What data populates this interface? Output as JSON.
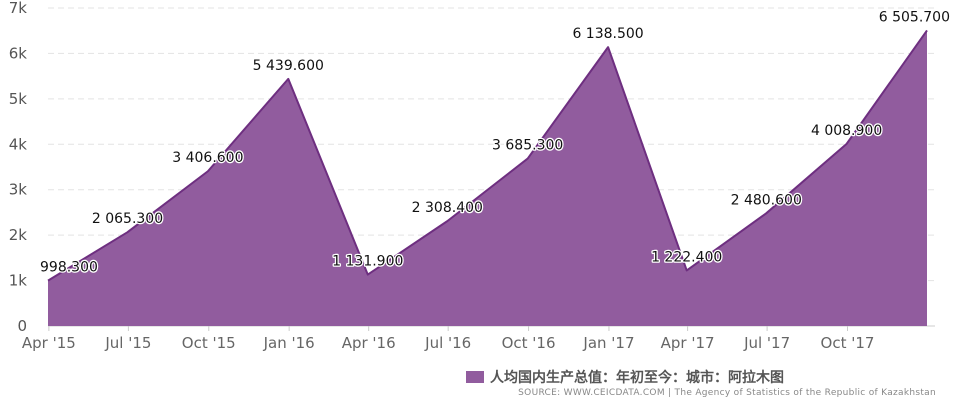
{
  "chart_data": {
    "type": "area",
    "x": [
      "2015-03",
      "2015-06",
      "2015-09",
      "2015-12",
      "2016-03",
      "2016-06",
      "2016-09",
      "2016-12",
      "2017-03",
      "2017-06",
      "2017-09",
      "2017-12"
    ],
    "values": [
      998.3,
      2065.3,
      3406.6,
      5439.6,
      1131.9,
      2308.4,
      3685.3,
      6138.5,
      1222.4,
      2480.6,
      4008.9,
      6505.7
    ],
    "data_labels": [
      "998.300",
      "2 065.300",
      "3 406.600",
      "5 439.600",
      "1 131.900",
      "2 308.400",
      "3 685.300",
      "6 138.500",
      "1 222.400",
      "2 480.600",
      "4 008.900",
      "6 505.700"
    ],
    "x_tick_labels": [
      "Apr '15",
      "Jul '15",
      "Oct '15",
      "Jan '16",
      "Apr '16",
      "Jul '16",
      "Oct '16",
      "Jan '17",
      "Apr '17",
      "Jul '17",
      "Oct '17"
    ],
    "y_tick_labels": [
      "0",
      "1k",
      "2k",
      "3k",
      "4k",
      "5k",
      "6k",
      "7k"
    ],
    "ylim": [
      0,
      7000
    ],
    "grid": "horizontal dashed",
    "legend": {
      "position": "bottom-right",
      "label": "人均国内生产总值：年初至今：城市：阿拉木图"
    },
    "source": "SOURCE: WWW.CEICDATA.COM | The Agency of Statistics of the Republic of Kazakhstan",
    "colors": {
      "fill": "#915c9e",
      "line": "#6e2f80",
      "grid": "#e3e3e3",
      "axis": "#cccccc"
    }
  }
}
